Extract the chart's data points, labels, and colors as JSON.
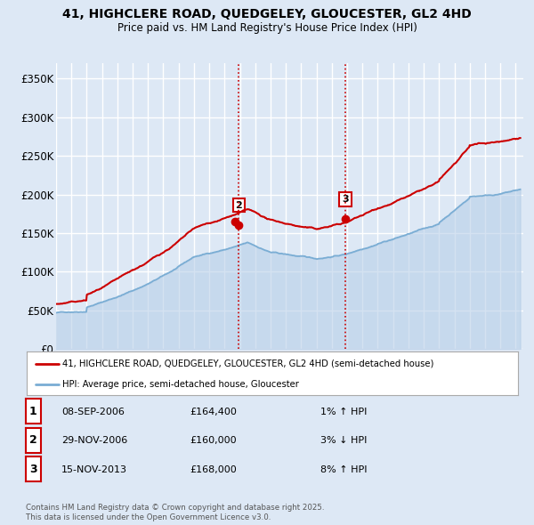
{
  "title_line1": "41, HIGHCLERE ROAD, QUEDGELEY, GLOUCESTER, GL2 4HD",
  "title_line2": "Price paid vs. HM Land Registry's House Price Index (HPI)",
  "ylabel_ticks": [
    "£0",
    "£50K",
    "£100K",
    "£150K",
    "£200K",
    "£250K",
    "£300K",
    "£350K"
  ],
  "ytick_values": [
    0,
    50000,
    100000,
    150000,
    200000,
    250000,
    300000,
    350000
  ],
  "ylim": [
    0,
    370000
  ],
  "xlim_start": 1995.0,
  "xlim_end": 2025.5,
  "bg_color": "#dde8f5",
  "plot_bg_color": "#dde8f5",
  "red_line_color": "#cc0000",
  "blue_line_color": "#7aadd4",
  "blue_fill_color": "#b8cfe8",
  "grid_color": "#ffffff",
  "sale_marker_color": "#cc0000",
  "vline_color": "#cc0000",
  "ann2_x": 2006.92,
  "ann2_y": 160000,
  "ann3_x": 2013.88,
  "ann3_y": 168000,
  "sale1_x": 2006.69,
  "sale1_y": 164400,
  "sale2_x": 2006.92,
  "sale2_y": 160000,
  "sale3_x": 2013.88,
  "sale3_y": 168000,
  "legend_red_label": "41, HIGHCLERE ROAD, QUEDGELEY, GLOUCESTER, GL2 4HD (semi-detached house)",
  "legend_blue_label": "HPI: Average price, semi-detached house, Gloucester",
  "table_rows": [
    {
      "num": "1",
      "date": "08-SEP-2006",
      "price": "£164,400",
      "hpi": "1% ↑ HPI"
    },
    {
      "num": "2",
      "date": "29-NOV-2006",
      "price": "£160,000",
      "hpi": "3% ↓ HPI"
    },
    {
      "num": "3",
      "date": "15-NOV-2013",
      "price": "£168,000",
      "hpi": "8% ↑ HPI"
    }
  ],
  "footnote_line1": "Contains HM Land Registry data © Crown copyright and database right 2025.",
  "footnote_line2": "This data is licensed under the Open Government Licence v3.0."
}
